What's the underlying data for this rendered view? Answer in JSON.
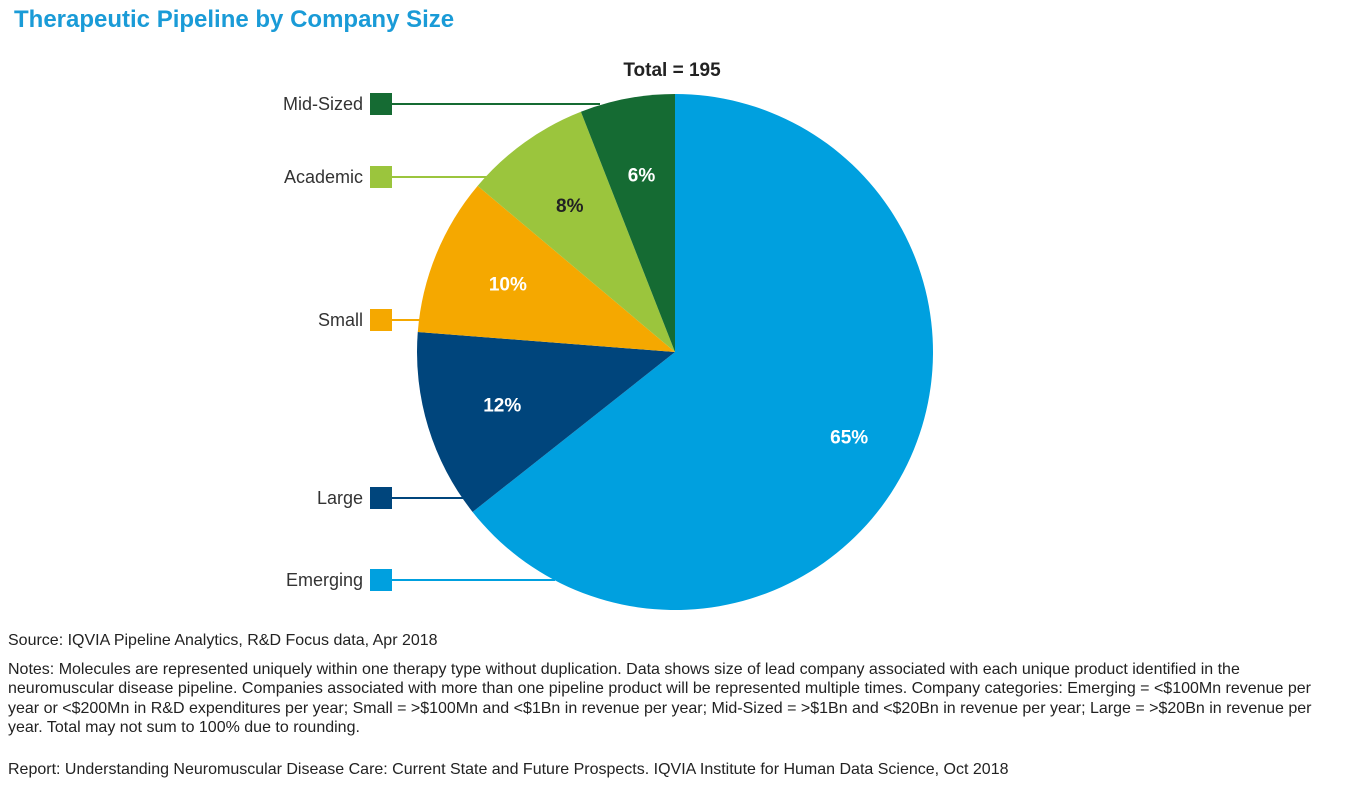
{
  "title": "Therapeutic Pipeline by Company Size",
  "chart_data": {
    "type": "pie",
    "title": "Total = 195",
    "total": 195,
    "slices": [
      {
        "name": "Emerging",
        "value": 65,
        "label": "65%",
        "color": "#00a0df",
        "label_color": "#ffffff"
      },
      {
        "name": "Large",
        "value": 12,
        "label": "12%",
        "color": "#00457c",
        "label_color": "#ffffff"
      },
      {
        "name": "Small",
        "value": 10,
        "label": "10%",
        "color": "#f5a800",
        "label_color": "#ffffff"
      },
      {
        "name": "Academic",
        "value": 8,
        "label": "8%",
        "color": "#9bc53d",
        "label_color": "#222222"
      },
      {
        "name": "Mid-Sized",
        "value": 6,
        "label": "6%",
        "color": "#156b33",
        "label_color": "#ffffff"
      }
    ],
    "legend": [
      "Mid-Sized",
      "Academic",
      "Small",
      "Large",
      "Emerging"
    ],
    "legend_placement": "left"
  },
  "footer": {
    "source": "Source: IQVIA Pipeline Analytics, R&D Focus data, Apr 2018",
    "notes": "Notes: Molecules are represented uniquely within one therapy type without duplication. Data shows size of lead company associated with each unique product identified in the neuromuscular disease pipeline. Companies associated with more than one pipeline product will be represented multiple times. Company categories: Emerging = <$100Mn revenue per year or <$200Mn in R&D expenditures per year; Small = >$100Mn and <$1Bn in revenue per year; Mid-Sized = >$1Bn and <$20Bn in revenue per year; Large = >$20Bn in revenue per year.  Total may not sum to 100% due to rounding.",
    "report": "Report: Understanding Neuromuscular Disease Care: Current State and Future Prospects. IQVIA Institute for Human Data Science, Oct 2018"
  }
}
